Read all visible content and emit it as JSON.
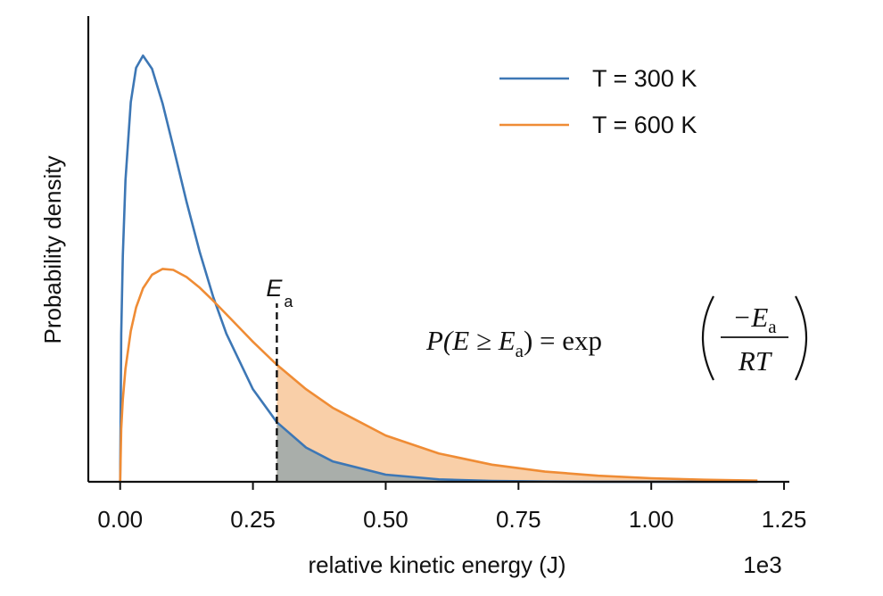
{
  "chart_data": {
    "type": "line",
    "xlabel": "relative kinetic energy (J)",
    "ylabel": "Probability density",
    "x_offset_label": "1e3",
    "x": [
      0,
      0.002,
      0.005,
      0.01,
      0.02,
      0.03,
      0.043,
      0.06,
      0.08,
      0.1,
      0.125,
      0.15,
      0.175,
      0.2,
      0.25,
      0.295,
      0.35,
      0.4,
      0.5,
      0.6,
      0.7,
      0.8,
      0.9,
      1.0,
      1.1,
      1.2
    ],
    "series": [
      {
        "name": "T = 300 K",
        "color": "#3d77b5",
        "fill": "#a9aeaa",
        "values": [
          0,
          1.955,
          2.985,
          3.983,
          5.014,
          5.467,
          5.627,
          5.454,
          4.992,
          4.423,
          3.697,
          3.029,
          2.446,
          1.955,
          1.222,
          0.787,
          0.452,
          0.27,
          0.0944,
          0.0323,
          0.0109,
          0.00365,
          0.00121,
          0.0004,
          0.0001,
          0
        ]
      },
      {
        "name": "T = 600 K",
        "color": "#ef8c35",
        "fill": "#f9cfa8",
        "values": [
          0,
          0.699,
          1.087,
          1.493,
          1.992,
          2.302,
          2.555,
          2.734,
          2.811,
          2.798,
          2.704,
          2.562,
          2.392,
          2.212,
          1.849,
          1.546,
          1.223,
          0.978,
          0.611,
          0.374,
          0.226,
          0.135,
          0.0801,
          0.0472,
          0.0277,
          0.0162
        ]
      }
    ],
    "xlim": [
      -0.06,
      1.26
    ],
    "ylim": [
      0,
      6.15
    ],
    "xticks": [
      {
        "value": 0,
        "label": "0.00"
      },
      {
        "value": 0.25,
        "label": "0.25"
      },
      {
        "value": 0.5,
        "label": "0.50"
      },
      {
        "value": 0.75,
        "label": "0.75"
      },
      {
        "value": 1.0,
        "label": "1.00"
      },
      {
        "value": 1.25,
        "label": "1.25"
      }
    ],
    "legend": "upper right",
    "grid": false,
    "activation_energy": {
      "x": 0.295,
      "label": "E",
      "label_sub": "a"
    },
    "formula": {
      "lhs": "P(E ≥ E",
      "lhs_sub": "a",
      "lhs_end": ") = exp",
      "numerator": "−E",
      "numerator_sub": "a",
      "denominator": "RT"
    }
  }
}
